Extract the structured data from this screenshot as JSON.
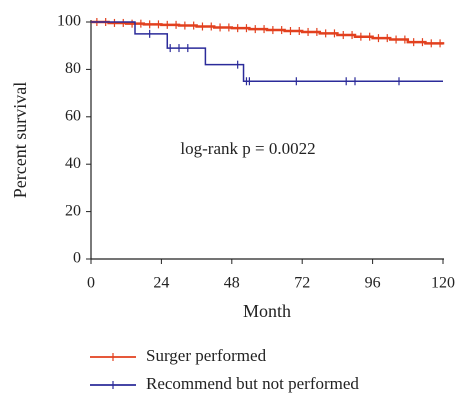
{
  "chart_data": {
    "type": "line",
    "step": true,
    "xlabel": "Month",
    "ylabel": "Percent survival",
    "annotation": "log-rank p = 0.0022",
    "xlim": [
      0,
      120
    ],
    "xticks": [
      0,
      24,
      48,
      72,
      96,
      120
    ],
    "ylim": [
      0,
      100
    ],
    "yticks": [
      0,
      20,
      40,
      60,
      80,
      100
    ],
    "legend": "bottom",
    "series": [
      {
        "name": "Surger performed",
        "color": "#e2401e",
        "x": [
          0,
          6,
          12,
          18,
          24,
          30,
          36,
          42,
          48,
          54,
          60,
          66,
          72,
          78,
          84,
          90,
          96,
          102,
          108,
          114,
          120
        ],
        "values": [
          100,
          99.6,
          99.3,
          99,
          98.8,
          98.5,
          98.1,
          97.7,
          97.4,
          97,
          96.6,
          96.2,
          95.8,
          95.2,
          94.5,
          93.8,
          93.2,
          92.6,
          91.5,
          91,
          90.5
        ],
        "censored": [
          2,
          5,
          8,
          11,
          14,
          17,
          20,
          23,
          26,
          29,
          32,
          35,
          38,
          41,
          44,
          47,
          50,
          53,
          56,
          59,
          62,
          65,
          68,
          71,
          74,
          77,
          80,
          83,
          86,
          89,
          92,
          95,
          98,
          101,
          104,
          107,
          110,
          113,
          116,
          119
        ]
      },
      {
        "name": "Recommend but not performed",
        "color": "#2b2b9a",
        "x": [
          0,
          15,
          26,
          39,
          52,
          120
        ],
        "values": [
          100,
          95,
          89,
          82,
          75,
          75
        ],
        "censored": [
          20,
          27,
          30,
          33,
          50,
          53,
          54,
          70,
          87,
          90,
          105
        ]
      }
    ]
  }
}
